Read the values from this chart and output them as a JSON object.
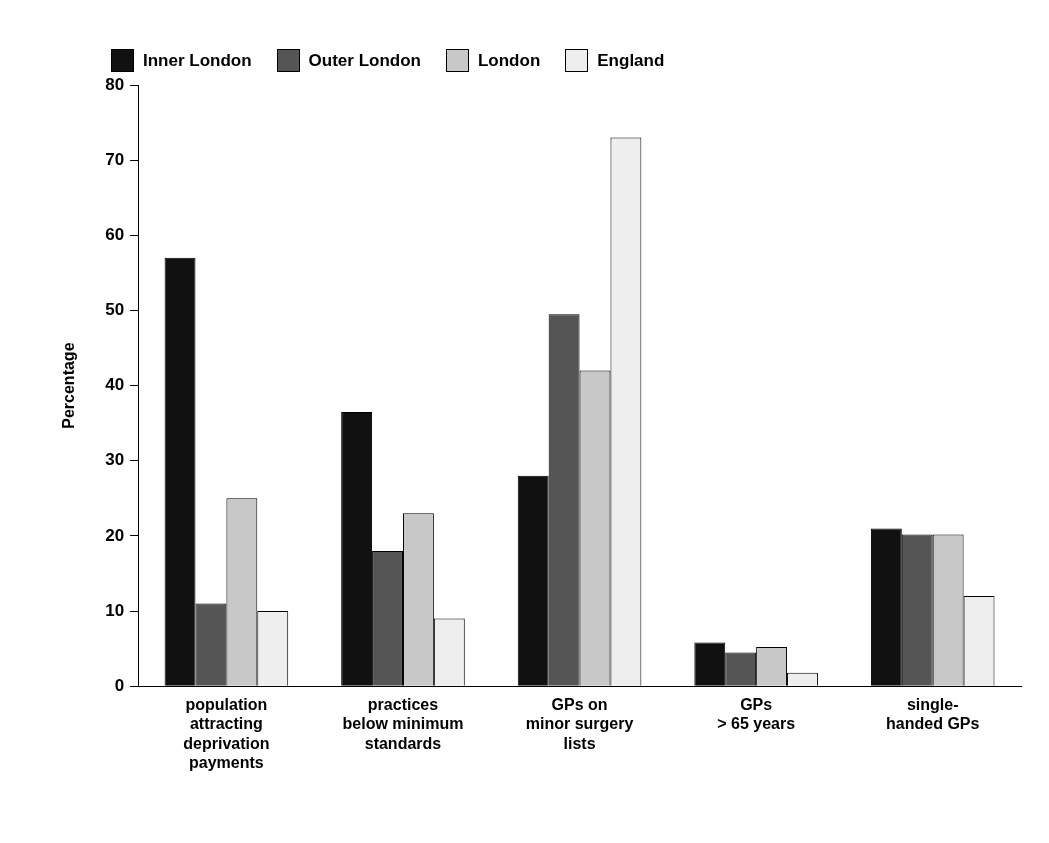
{
  "chart_data": {
    "type": "bar",
    "ylabel": "Percentage",
    "categories": [
      "population\nattracting\ndeprivation\npayments",
      "practices\nbelow minimum\nstandards",
      "GPs on\nminor surgery\nlists",
      "GPs\n> 65 years",
      "single-\nhanded GPs"
    ],
    "series": [
      {
        "name": "Inner London",
        "color": "#111111",
        "values": [
          57,
          36.5,
          28,
          5.8,
          21
        ]
      },
      {
        "name": "Outer London",
        "color": "#555555",
        "values": [
          11,
          18,
          49.5,
          4.5,
          20.2
        ]
      },
      {
        "name": "London",
        "color": "#c8c8c8",
        "values": [
          25,
          23,
          42,
          5.2,
          20.2
        ]
      },
      {
        "name": "England",
        "color": "#eeeeee",
        "values": [
          10,
          9,
          73,
          1.8,
          12
        ]
      }
    ],
    "ylim": [
      0,
      80
    ],
    "yticks": [
      0,
      10,
      20,
      30,
      40,
      50,
      60,
      70,
      80
    ],
    "grid": false,
    "legend": "top left"
  }
}
